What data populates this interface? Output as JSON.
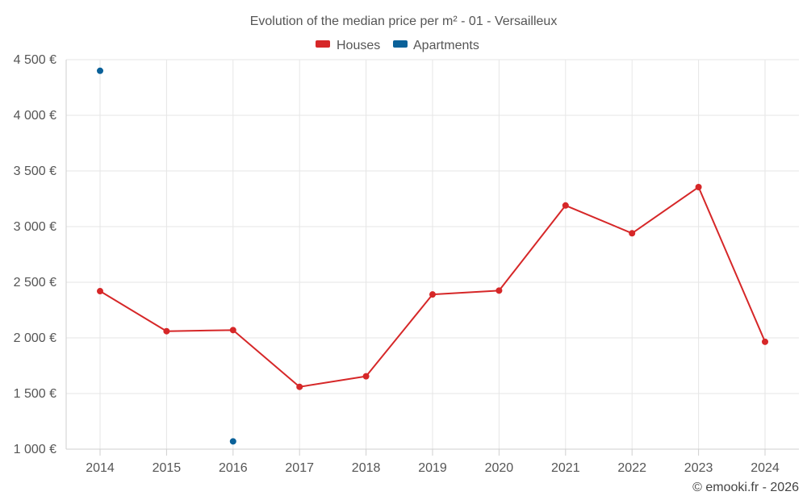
{
  "footer": {
    "credit": "© emooki.fr - 2026"
  },
  "chart_data": {
    "type": "line",
    "title": "Evolution of the median price per m² - 01 - Versailleux",
    "xlabel": "",
    "ylabel": "",
    "categories": [
      "2014",
      "2015",
      "2016",
      "2017",
      "2018",
      "2019",
      "2020",
      "2021",
      "2022",
      "2023",
      "2024"
    ],
    "ylim": [
      1000,
      4500
    ],
    "yticks": [
      1000,
      1500,
      2000,
      2500,
      3000,
      3500,
      4000,
      4500
    ],
    "ytick_labels": [
      "1 000 €",
      "1 500 €",
      "2 000 €",
      "2 500 €",
      "3 000 €",
      "3 500 €",
      "4 000 €",
      "4 500 €"
    ],
    "grid": true,
    "legend_position": "top-center",
    "series": [
      {
        "name": "Houses",
        "color": "#d62728",
        "style": "line-with-markers",
        "values": [
          2420,
          2060,
          2070,
          1560,
          1655,
          2390,
          2425,
          3190,
          2940,
          3355,
          1965
        ]
      },
      {
        "name": "Apartments",
        "color": "#0a6199",
        "style": "markers",
        "values": [
          4400,
          null,
          1070,
          null,
          null,
          null,
          null,
          null,
          null,
          null,
          null
        ]
      }
    ]
  }
}
